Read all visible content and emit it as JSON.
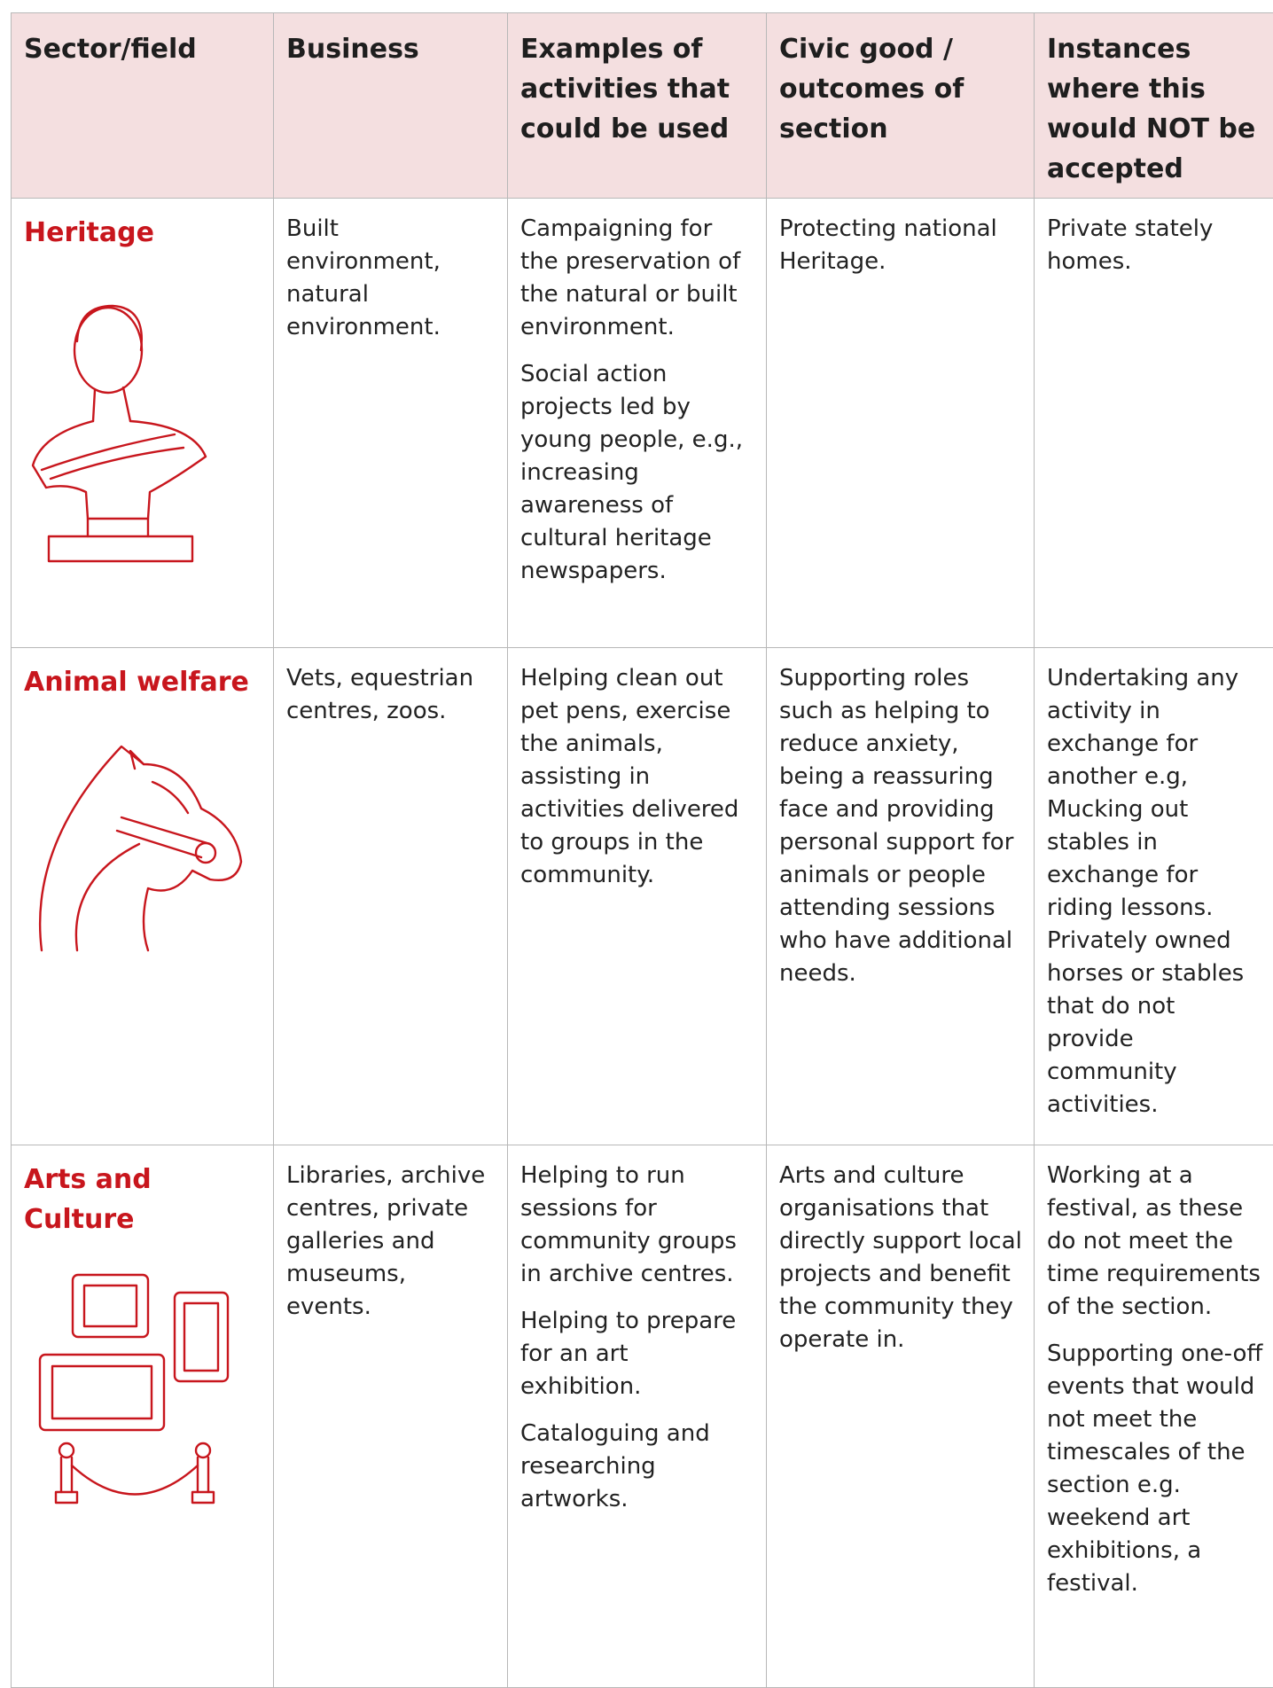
{
  "table": {
    "headers": [
      "Sector/field",
      "Business",
      "Examples of activities that could be used",
      "Civic good / outcomes of section",
      "Instances where this would NOT be accepted"
    ],
    "rows": [
      {
        "sector": "Heritage",
        "business": [
          "Built environment, natural environment."
        ],
        "examples": [
          "Campaigning for the preservation of the natural or built environment.",
          "Social action projects led by young people, e.g., increasing awareness of cultural heritage newspapers."
        ],
        "civic": [
          "Protecting national Heritage."
        ],
        "not_accepted": [
          "Private stately homes."
        ]
      },
      {
        "sector": "Animal welfare",
        "business": [
          "Vets, equestrian centres, zoos."
        ],
        "examples": [
          "Helping clean out pet pens, exercise the animals, assisting in activities delivered to groups in the community."
        ],
        "civic": [
          "Supporting roles such as helping to reduce anxiety, being a reassuring face and providing personal support for animals or people attending sessions who have additional needs."
        ],
        "not_accepted": [
          "Undertaking any activity in exchange for another e.g, Mucking out stables in exchange for riding lessons. Privately owned horses or stables that do not provide community activities."
        ]
      },
      {
        "sector": "Arts and Culture",
        "business": [
          "Libraries, archive centres, private galleries and museums, events."
        ],
        "examples": [
          "Helping to run sessions for community groups in archive centres.",
          "Helping to prepare for an art exhibition.",
          "Cataloguing and researching artworks."
        ],
        "civic": [
          "Arts and culture organisations that directly support local projects and benefit the community they operate in."
        ],
        "not_accepted": [
          "Working at a festival, as these do not meet the time requirements of the section.",
          "Supporting one-off events that would not meet the timescales of the section e.g. weekend art exhibitions, a festival."
        ]
      }
    ]
  }
}
